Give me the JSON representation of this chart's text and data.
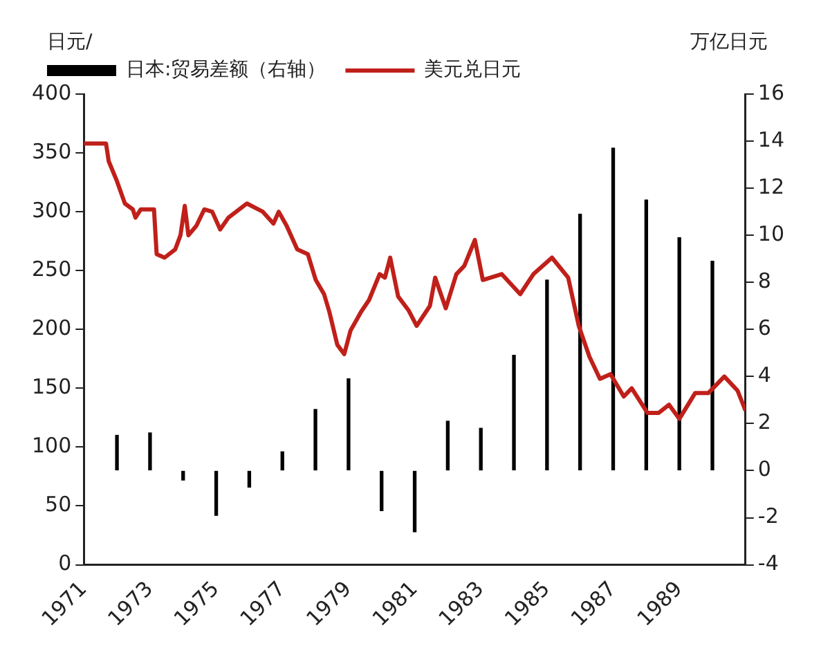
{
  "chart_data": {
    "type": "line",
    "ylabel": "日元/",
    "y2label": "万亿日元",
    "xlim": [
      1971,
      1991
    ],
    "xticks": [
      1971,
      1973,
      1975,
      1977,
      1979,
      1981,
      1983,
      1985,
      1987,
      1989
    ],
    "ylim": [
      0,
      400
    ],
    "yticks": [
      0,
      50,
      100,
      150,
      200,
      250,
      300,
      350,
      400
    ],
    "y2lim": [
      -4,
      16
    ],
    "y2ticks": [
      -4,
      -2,
      0,
      2,
      4,
      6,
      8,
      10,
      12,
      14,
      16
    ],
    "grid": false,
    "legend": "top left",
    "marker": "none",
    "series": [
      {
        "name": "日本:贸易差额（右轴）",
        "type": "bar",
        "axis": "y2",
        "color": "#000000",
        "x": [
          1972,
          1973,
          1974,
          1975,
          1976,
          1977,
          1978,
          1979,
          1980,
          1981,
          1982,
          1983,
          1984,
          1985,
          1986,
          1987,
          1988,
          1989,
          1990
        ],
        "values": [
          1.5,
          1.6,
          -0.4,
          -1.9,
          -0.7,
          0.8,
          2.6,
          3.9,
          -1.7,
          -2.6,
          2.1,
          1.8,
          4.9,
          8.1,
          10.9,
          13.7,
          11.5,
          9.9,
          8.9
        ]
      },
      {
        "name": "美元兑日元",
        "color": "#c0201a",
        "x": [
          1971.0,
          1971.67,
          1971.75,
          1972.0,
          1972.24,
          1972.48,
          1972.56,
          1972.72,
          1973.12,
          1973.2,
          1973.44,
          1973.76,
          1973.92,
          1974.05,
          1974.16,
          1974.4,
          1974.64,
          1974.88,
          1975.12,
          1975.37,
          1975.93,
          1976.41,
          1976.73,
          1976.89,
          1977.13,
          1977.45,
          1977.77,
          1978.01,
          1978.26,
          1978.42,
          1978.66,
          1978.87,
          1979.06,
          1979.38,
          1979.62,
          1979.94,
          1980.1,
          1980.26,
          1980.5,
          1980.82,
          1981.06,
          1981.46,
          1981.62,
          1981.94,
          1982.26,
          1982.5,
          1982.82,
          1983.06,
          1983.63,
          1984.19,
          1984.59,
          1985.15,
          1985.64,
          1985.96,
          1986.28,
          1986.6,
          1986.92,
          1987.32,
          1987.56,
          1988.04,
          1988.37,
          1988.69,
          1989.0,
          1989.48,
          1989.88,
          1990.36,
          1990.76,
          1991.0
        ],
        "values": [
          358,
          358,
          343,
          326,
          307,
          302,
          295,
          302,
          302,
          264,
          261,
          268,
          280,
          305,
          280,
          288,
          302,
          300,
          285,
          295,
          307,
          300,
          290,
          300,
          288,
          268,
          264,
          242,
          230,
          215,
          187,
          179,
          199,
          215,
          225,
          247,
          244,
          261,
          228,
          216,
          203,
          220,
          244,
          218,
          247,
          254,
          276,
          242,
          247,
          230,
          247,
          261,
          244,
          203,
          177,
          158,
          162,
          143,
          150,
          129,
          129,
          136,
          124,
          146,
          146,
          160,
          148,
          131
        ]
      }
    ]
  }
}
